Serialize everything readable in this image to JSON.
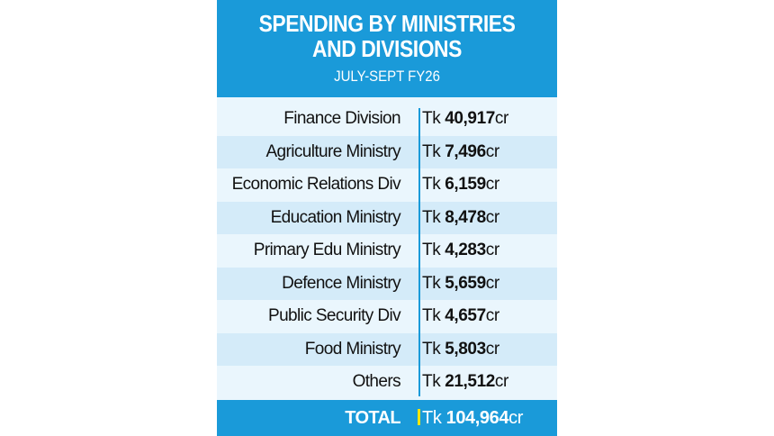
{
  "chart_data": {
    "type": "table",
    "title": "SPENDING BY MINISTRIES AND DIVISIONS",
    "subtitle": "JULY-SEPT FY26",
    "currency_prefix": "Tk",
    "unit_suffix": "cr",
    "rows": [
      {
        "label": "Finance Division",
        "value": "40,917"
      },
      {
        "label": "Agriculture Ministry",
        "value": "7,496"
      },
      {
        "label": "Economic Relations Div",
        "value": "6,159"
      },
      {
        "label": "Education Ministry",
        "value": "8,478"
      },
      {
        "label": "Primary Edu Ministry",
        "value": "4,283"
      },
      {
        "label": "Defence Ministry",
        "value": "5,659"
      },
      {
        "label": "Public Security Div",
        "value": "4,657"
      },
      {
        "label": "Food Ministry",
        "value": "5,803"
      },
      {
        "label": "Others",
        "value": "21,512"
      }
    ],
    "total": {
      "label": "TOTAL",
      "value": "104,964"
    }
  },
  "colors": {
    "header": "#1a9ad9",
    "row_light": "#eaf6fd",
    "row_dark": "#d4ebf9",
    "total_bar": "#f2e500"
  }
}
